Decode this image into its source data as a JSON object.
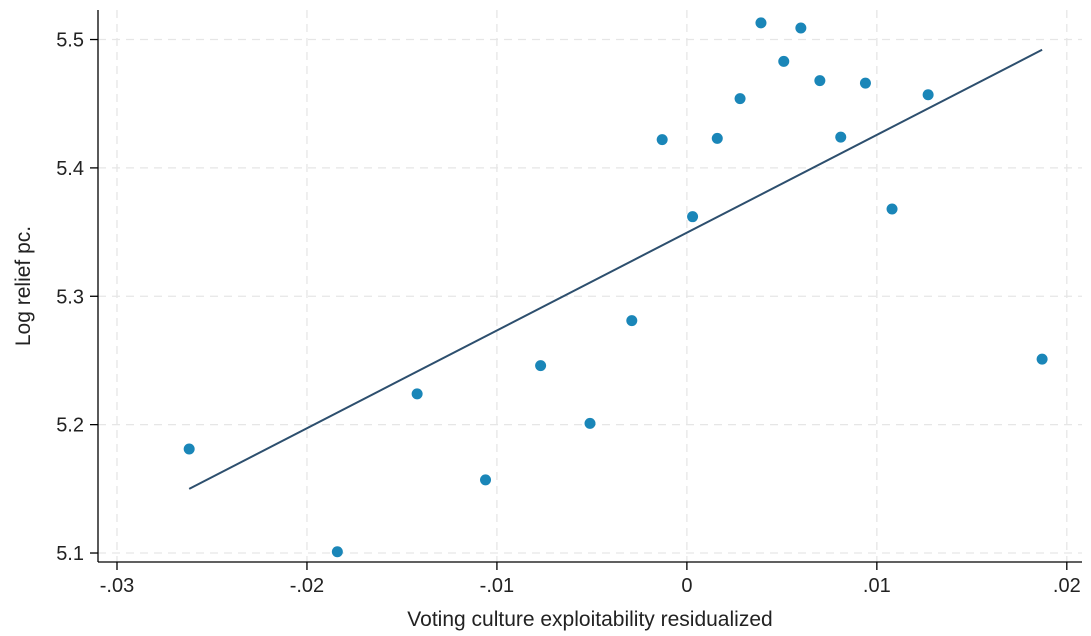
{
  "chart_data": {
    "type": "scatter",
    "title": "",
    "xlabel": "Voting culture exploitability residualized",
    "ylabel": "Log relief pc.",
    "xlim": [
      -0.031,
      0.0208
    ],
    "ylim": [
      5.093,
      5.523
    ],
    "x_ticks": [
      -0.03,
      -0.02,
      -0.01,
      0,
      0.01,
      0.02
    ],
    "x_tick_labels": [
      "-.03",
      "-.02",
      "-.01",
      "0",
      ".01",
      ".02"
    ],
    "y_ticks": [
      5.1,
      5.2,
      5.3,
      5.4,
      5.5
    ],
    "y_tick_labels": [
      "5.1",
      "5.2",
      "5.3",
      "5.4",
      "5.5"
    ],
    "grid": true,
    "legend": "none",
    "marker_color": "#1a86b8",
    "line_color": "#2d4f6e",
    "points": [
      {
        "x": -0.0262,
        "y": 5.181
      },
      {
        "x": -0.0184,
        "y": 5.101
      },
      {
        "x": -0.0142,
        "y": 5.224
      },
      {
        "x": -0.0106,
        "y": 5.157
      },
      {
        "x": -0.0077,
        "y": 5.246
      },
      {
        "x": -0.0051,
        "y": 5.201
      },
      {
        "x": -0.0029,
        "y": 5.281
      },
      {
        "x": -0.0013,
        "y": 5.422
      },
      {
        "x": 0.0003,
        "y": 5.362
      },
      {
        "x": 0.0016,
        "y": 5.423
      },
      {
        "x": 0.0028,
        "y": 5.454
      },
      {
        "x": 0.0039,
        "y": 5.513
      },
      {
        "x": 0.0051,
        "y": 5.483
      },
      {
        "x": 0.006,
        "y": 5.509
      },
      {
        "x": 0.007,
        "y": 5.468
      },
      {
        "x": 0.0081,
        "y": 5.424
      },
      {
        "x": 0.0094,
        "y": 5.466
      },
      {
        "x": 0.0108,
        "y": 5.368
      },
      {
        "x": 0.0127,
        "y": 5.457
      },
      {
        "x": 0.0187,
        "y": 5.251
      }
    ],
    "fit_line": {
      "x": [
        -0.0262,
        0.0187
      ],
      "y": [
        5.15,
        5.492
      ]
    }
  }
}
